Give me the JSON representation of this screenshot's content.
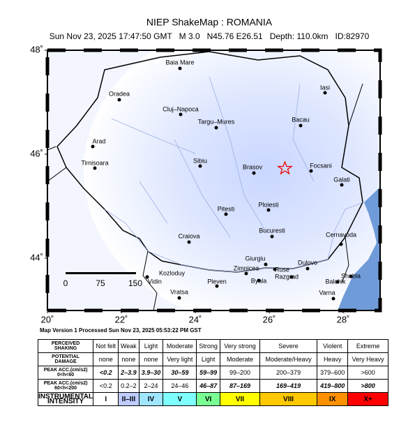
{
  "header": {
    "title": "NIEP ShakeMap : ROMANIA",
    "subtitle": "Sun Nov 23, 2025 17:47:50 GMT   M 3.0   N45.76 E26.51   Depth: 110.0km   ID:82970"
  },
  "map": {
    "lon_ticks": [
      {
        "value": 20,
        "label": "20˚"
      },
      {
        "value": 22,
        "label": "22˚"
      },
      {
        "value": 24,
        "label": "24˚"
      },
      {
        "value": 26,
        "label": "26˚"
      },
      {
        "value": 28,
        "label": "28˚"
      }
    ],
    "lat_ticks": [
      {
        "value": 44,
        "label": "44˚"
      },
      {
        "value": 46,
        "label": "46˚"
      },
      {
        "value": 48,
        "label": "48˚"
      }
    ],
    "cities": [
      "Baia Mare",
      "Oradea",
      "Iasi",
      "Cluj–Napoca",
      "Targu–Mures",
      "Bacau",
      "Arad",
      "Timisoara",
      "Sibiu",
      "Brasov",
      "Focsani",
      "Galati",
      "Ploiesti",
      "Pitesti",
      "Bucuresti",
      "Cernavoda",
      "Craiova",
      "Giurgiu",
      "Zimnicea",
      "Ruse",
      "Dulovo",
      "Kozloduy",
      "Vidin",
      "Pleven",
      "Byala",
      "Razgrad",
      "Shabla",
      "Balchik",
      "Vratsa",
      "Varna"
    ],
    "scale_bar": [
      "0",
      "75",
      "150"
    ]
  },
  "caption": "Map Version 1 Processed Sun Nov 23, 2025 05:53:22 PM GST",
  "table": {
    "rows": [
      [
        [
          "PERCEIVED",
          "SHAKING"
        ],
        "Not felt",
        "Weak",
        "Light",
        "Moderate",
        "Strong",
        "Very strong",
        "Severe",
        "Violent",
        "Extreme"
      ],
      [
        [
          "POTENTIAL",
          "DAMAGE"
        ],
        "none",
        "none",
        "none",
        "Very light",
        "Light",
        "Moderate",
        "Moderate/Heavy",
        "Heavy",
        "Very Heavy"
      ],
      [
        [
          "PEAK ACC.(cm/s2)",
          "0<h<60"
        ],
        "<0.2",
        "2–3.9",
        "3.9–30",
        "30–59",
        "59–99",
        "99–200",
        "200–379",
        "379–600",
        ">600"
      ],
      [
        [
          "PEAK ACC.(cm/s2)",
          "60<h<200"
        ],
        "<0.2",
        "0.2–2",
        "2–24",
        "24–46",
        "46–87",
        "87–169",
        "169–419",
        "419–800",
        ">800"
      ],
      [
        [
          "INSTRUMENTAL",
          "INTENSITY"
        ],
        "I",
        "II–III",
        "IV",
        "V",
        "VI",
        "VII",
        "VIII",
        "IX",
        "X+"
      ]
    ],
    "intensity_colors": [
      "#ffffff",
      "#bfccff",
      "#a0e6ff",
      "#80ffff",
      "#7aff93",
      "#ffff00",
      "#ffc800",
      "#ff9100",
      "#ff0000"
    ]
  }
}
